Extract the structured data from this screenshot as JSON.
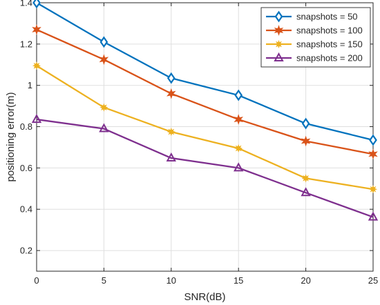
{
  "chart_data": {
    "type": "line",
    "xlabel": "SNR(dB)",
    "ylabel": "positioning error(m)",
    "xlim": [
      0,
      25
    ],
    "ylim": [
      0.1,
      1.4
    ],
    "x_ticks": [
      "0",
      "5",
      "10",
      "15",
      "20",
      "25"
    ],
    "y_ticks": [
      "0.2",
      "0.4",
      "0.6",
      "0.8",
      "1",
      "1.2",
      "1.4"
    ],
    "grid": true,
    "legend_position": "top-right",
    "x": [
      0,
      5,
      10,
      15,
      20,
      25
    ],
    "series": [
      {
        "name": "snapshots = 50",
        "color": "#0072BD",
        "marker": "diamond",
        "values": [
          1.4,
          1.21,
          1.035,
          0.952,
          0.815,
          0.735
        ]
      },
      {
        "name": "snapshots = 100",
        "color": "#D95319",
        "marker": "hexagram",
        "values": [
          1.27,
          1.125,
          0.96,
          0.835,
          0.73,
          0.667
        ]
      },
      {
        "name": "snapshots = 150",
        "color": "#EDB120",
        "marker": "star",
        "values": [
          1.095,
          0.893,
          0.775,
          0.695,
          0.55,
          0.497
        ]
      },
      {
        "name": "snapshots = 200",
        "color": "#7E2F8E",
        "marker": "triangle",
        "values": [
          0.835,
          0.79,
          0.648,
          0.6,
          0.48,
          0.362
        ]
      }
    ]
  }
}
